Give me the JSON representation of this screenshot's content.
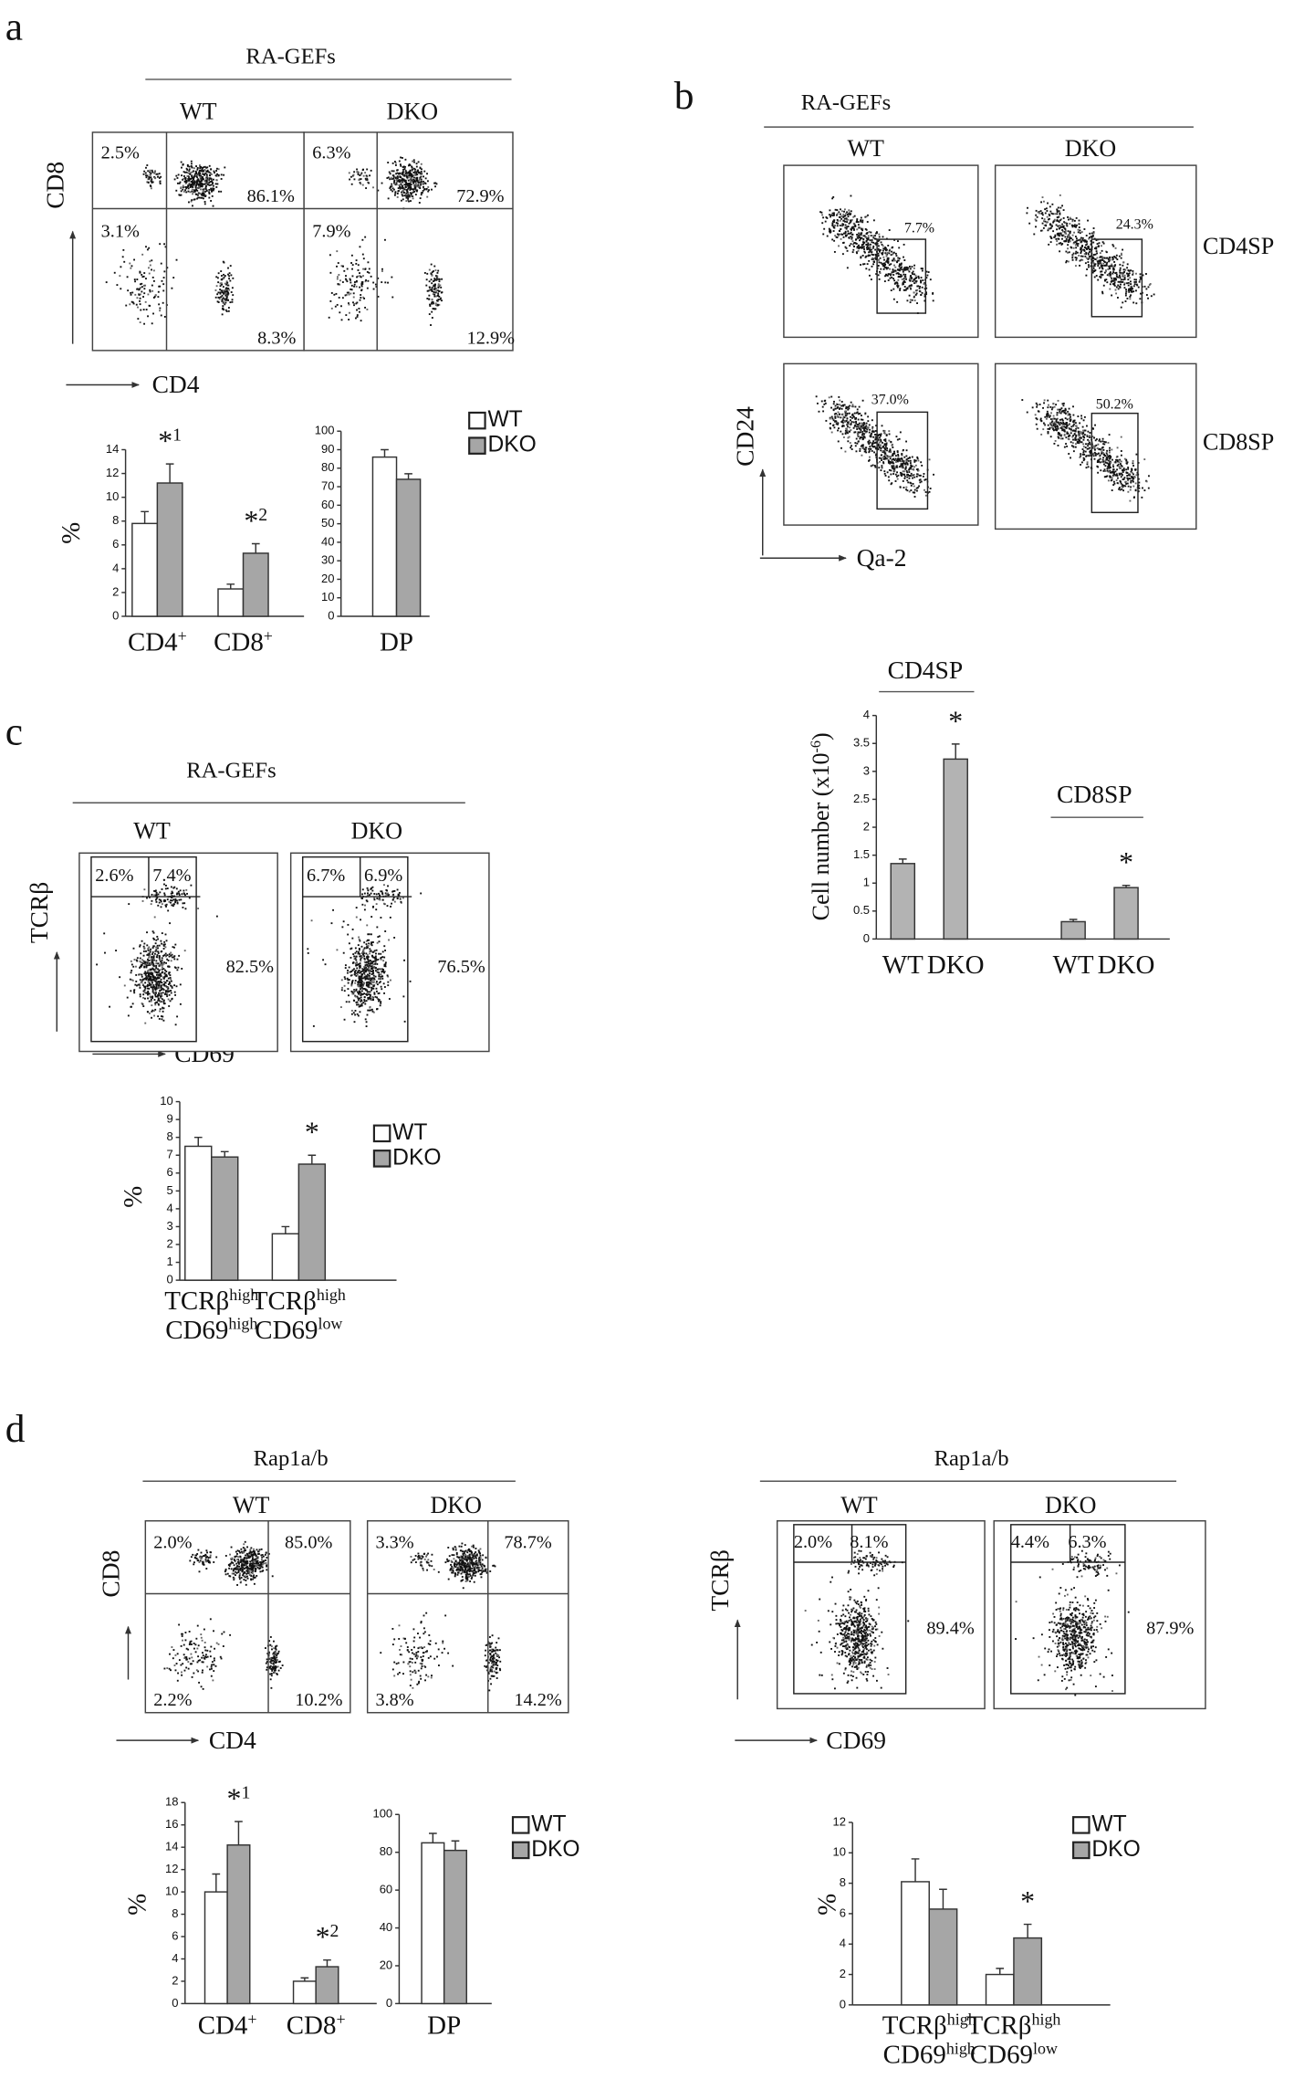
{
  "panel_labels": [
    "a",
    "b",
    "c",
    "d"
  ],
  "flow_panels": [
    {
      "group": "RA-GEFs",
      "columns": [
        "WT",
        "DKO"
      ],
      "y_axis": "CD8",
      "x_axis": "CD4",
      "plots": [
        {
          "labels": [
            "2.5%",
            "86.1%",
            "3.1%",
            "8.3%"
          ]
        },
        {
          "labels": [
            "6.3%",
            "72.9%",
            "7.9%",
            "12.9%"
          ]
        }
      ]
    },
    {
      "group": "RA-GEFs",
      "columns": [
        "WT",
        "DKO"
      ],
      "rows": [
        "CD4SP",
        "CD8SP"
      ],
      "y_axis": "CD24",
      "x_axis": "Qa-2",
      "plots": [
        {
          "labels": [
            "7.7%"
          ]
        },
        {
          "labels": [
            "24.3%"
          ]
        },
        {
          "labels": [
            "37.0%"
          ]
        },
        {
          "labels": [
            "50.2%"
          ]
        }
      ]
    },
    {
      "group": "RA-GEFs",
      "columns": [
        "WT",
        "DKO"
      ],
      "y_axis": "TCRβ",
      "x_axis": "CD69",
      "plots": [
        {
          "labels": [
            "2.6%",
            "7.4%",
            "82.5%"
          ]
        },
        {
          "labels": [
            "6.7%",
            "6.9%",
            "76.5%"
          ]
        }
      ]
    },
    {
      "group": "Rap1a/b",
      "columns": [
        "WT",
        "DKO"
      ],
      "y_axis": "CD8",
      "x_axis": "CD4",
      "plots": [
        {
          "labels": [
            "2.0%",
            "85.0%",
            "2.2%",
            "10.2%"
          ]
        },
        {
          "labels": [
            "3.3%",
            "78.7%",
            "3.8%",
            "14.2%"
          ]
        }
      ]
    },
    {
      "group": "Rap1a/b",
      "columns": [
        "WT",
        "DKO"
      ],
      "y_axis": "TCRβ",
      "x_axis": "CD69",
      "plots": [
        {
          "labels": [
            "2.0%",
            "8.1%",
            "89.4%"
          ]
        },
        {
          "labels": [
            "4.4%",
            "6.3%",
            "87.9%"
          ]
        }
      ]
    }
  ],
  "chart_data": [
    {
      "type": "bar",
      "ylabel": {
        "text": "%"
      },
      "categories": [
        [
          {
            "text": "CD4",
            "sup": "+"
          }
        ],
        [
          {
            "text": "CD8",
            "sup": "+"
          }
        ]
      ],
      "series": [
        {
          "name": "WT",
          "color": "#ffffff",
          "values": [
            7.8,
            2.3
          ],
          "errors": [
            1.0,
            0.4
          ],
          "marks": [
            null,
            null
          ]
        },
        {
          "name": "DKO",
          "color": "#a6a6a6",
          "values": [
            11.2,
            5.3
          ],
          "errors": [
            1.6,
            0.8
          ],
          "marks": [
            {
              "text": "*",
              "sup": "1"
            },
            {
              "text": "*",
              "sup": "2"
            }
          ]
        }
      ],
      "ylim": [
        0,
        14
      ],
      "yticks": [
        0,
        2,
        4,
        6,
        8,
        10,
        12,
        14
      ]
    },
    {
      "type": "bar",
      "legend": true,
      "categories": [
        [
          {
            "text": "DP"
          }
        ]
      ],
      "series": [
        {
          "name": "WT",
          "color": "#ffffff",
          "values": [
            86
          ],
          "errors": [
            4
          ],
          "marks": [
            null
          ]
        },
        {
          "name": "DKO",
          "color": "#a6a6a6",
          "values": [
            74
          ],
          "errors": [
            3
          ],
          "marks": [
            null
          ]
        }
      ],
      "ylim": [
        0,
        100
      ],
      "yticks": [
        0,
        10,
        20,
        30,
        40,
        50,
        60,
        70,
        80,
        90,
        100
      ]
    },
    {
      "type": "bar",
      "ylabel": {
        "text": "Cell number (x10",
        "sup": "-6",
        "tail": ")"
      },
      "groups": [
        "CD4SP",
        "CD8SP"
      ],
      "categories": [
        [
          {
            "text": "WT"
          }
        ],
        [
          {
            "text": "DKO"
          }
        ],
        [
          {
            "text": "WT"
          }
        ],
        [
          {
            "text": "DKO"
          }
        ]
      ],
      "series": [
        {
          "color": "#b3b3b3",
          "values": [
            1.35,
            3.22,
            0.31,
            0.92
          ],
          "errors": [
            0.08,
            0.27,
            0.04,
            0.04
          ],
          "marks": [
            null,
            {
              "text": "*"
            },
            null,
            {
              "text": "*"
            }
          ]
        }
      ],
      "ylim": [
        0,
        4
      ],
      "yticks": [
        0,
        0.5,
        1,
        1.5,
        2,
        2.5,
        3,
        3.5,
        4
      ]
    },
    {
      "type": "bar",
      "legend": true,
      "ylabel": {
        "text": "%"
      },
      "categories": [
        [
          {
            "text": "TCRβ",
            "sup": "high"
          },
          {
            "text": "CD69",
            "sup": "high"
          }
        ],
        [
          {
            "text": "TCRβ",
            "sup": "high"
          },
          {
            "text": "CD69",
            "sup": "low"
          }
        ]
      ],
      "series": [
        {
          "name": "WT",
          "color": "#ffffff",
          "values": [
            7.5,
            2.6
          ],
          "errors": [
            0.5,
            0.4
          ],
          "marks": [
            null,
            null
          ]
        },
        {
          "name": "DKO",
          "color": "#a6a6a6",
          "values": [
            6.9,
            6.5
          ],
          "errors": [
            0.3,
            0.5
          ],
          "marks": [
            null,
            {
              "text": "*"
            }
          ]
        }
      ],
      "ylim": [
        0,
        10
      ],
      "yticks": [
        0,
        1,
        2,
        3,
        4,
        5,
        6,
        7,
        8,
        9,
        10
      ]
    },
    {
      "type": "bar",
      "ylabel": {
        "text": "%"
      },
      "categories": [
        [
          {
            "text": "CD4",
            "sup": "+"
          }
        ],
        [
          {
            "text": "CD8",
            "sup": "+"
          }
        ]
      ],
      "series": [
        {
          "name": "WT",
          "color": "#ffffff",
          "values": [
            10.0,
            2.0
          ],
          "errors": [
            1.6,
            0.3
          ],
          "marks": [
            null,
            null
          ]
        },
        {
          "name": "DKO",
          "color": "#a6a6a6",
          "values": [
            14.2,
            3.3
          ],
          "errors": [
            2.1,
            0.6
          ],
          "marks": [
            {
              "text": "*",
              "sup": "1"
            },
            {
              "text": "*",
              "sup": "2"
            }
          ]
        }
      ],
      "ylim": [
        0,
        18
      ],
      "yticks": [
        0,
        2,
        4,
        6,
        8,
        10,
        12,
        14,
        16,
        18
      ]
    },
    {
      "type": "bar",
      "legend": true,
      "categories": [
        [
          {
            "text": "DP"
          }
        ]
      ],
      "series": [
        {
          "name": "WT",
          "color": "#ffffff",
          "values": [
            85
          ],
          "errors": [
            5
          ],
          "marks": [
            null
          ]
        },
        {
          "name": "DKO",
          "color": "#a6a6a6",
          "values": [
            81
          ],
          "errors": [
            5
          ],
          "marks": [
            null
          ]
        }
      ],
      "ylim": [
        0,
        100
      ],
      "yticks": [
        0,
        20,
        40,
        60,
        80,
        100
      ]
    },
    {
      "type": "bar",
      "legend": true,
      "ylabel": {
        "text": "%"
      },
      "categories": [
        [
          {
            "text": "TCRβ",
            "sup": "high"
          },
          {
            "text": "CD69",
            "sup": "high"
          }
        ],
        [
          {
            "text": "TCRβ",
            "sup": "high"
          },
          {
            "text": "CD69",
            "sup": "low"
          }
        ]
      ],
      "series": [
        {
          "name": "WT",
          "color": "#ffffff",
          "values": [
            8.1,
            2.0
          ],
          "errors": [
            1.5,
            0.4
          ],
          "marks": [
            null,
            null
          ]
        },
        {
          "name": "DKO",
          "color": "#a6a6a6",
          "values": [
            6.3,
            4.4
          ],
          "errors": [
            1.3,
            0.9
          ],
          "marks": [
            null,
            {
              "text": "*"
            }
          ]
        }
      ],
      "ylim": [
        0,
        12
      ],
      "yticks": [
        0,
        2,
        4,
        6,
        8,
        10,
        12
      ]
    }
  ]
}
